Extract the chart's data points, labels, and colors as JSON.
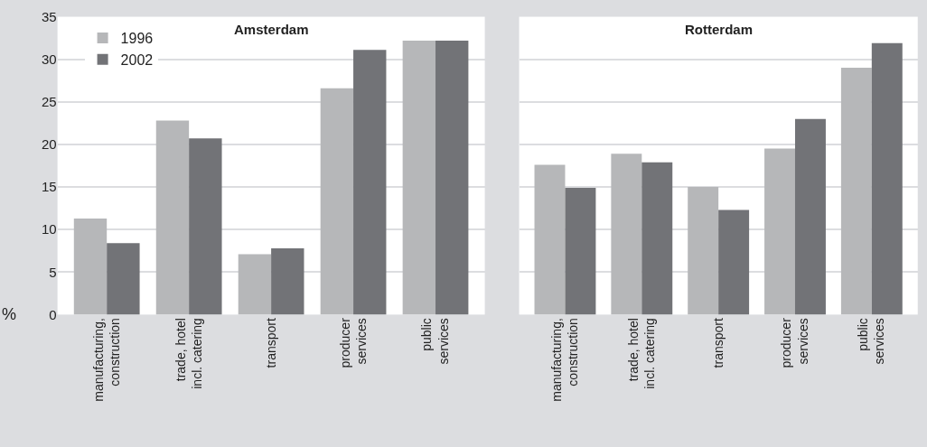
{
  "chart_data": [
    {
      "type": "bar",
      "title": "Amsterdam",
      "ylabel": "%",
      "categories": [
        "manufacturing,\nconstruction",
        "trade, hotel\nincl. catering",
        "transport",
        "producer\nservices",
        "public\nservices"
      ],
      "series": [
        {
          "name": "1996",
          "color": "#b6b7b9",
          "values": [
            11.3,
            22.8,
            7.1,
            26.6,
            32.2
          ]
        },
        {
          "name": "2002",
          "color": "#727377",
          "values": [
            8.4,
            20.7,
            7.8,
            31.1,
            32.2
          ]
        }
      ],
      "ylim": [
        0,
        35
      ],
      "yticks": [
        0,
        5,
        10,
        15,
        20,
        25,
        30,
        35
      ],
      "grid": "y",
      "legend": "top left"
    },
    {
      "type": "bar",
      "title": "Rotterdam",
      "categories": [
        "manufacturing,\nconstruction",
        "trade, hotel\nincl. catering",
        "transport",
        "producer\nservices",
        "public\nservices"
      ],
      "series": [
        {
          "color": "#b6b7b9",
          "values": [
            17.6,
            18.9,
            15.0,
            19.5,
            29.0
          ]
        },
        {
          "color": "#727377",
          "values": [
            14.9,
            17.9,
            12.3,
            23.0,
            31.9
          ]
        }
      ],
      "ylim": [
        0,
        35
      ],
      "yticks": [
        0,
        5,
        10,
        15,
        20,
        25,
        30,
        35
      ],
      "grid": "y",
      "tick_labels": "x"
    }
  ]
}
